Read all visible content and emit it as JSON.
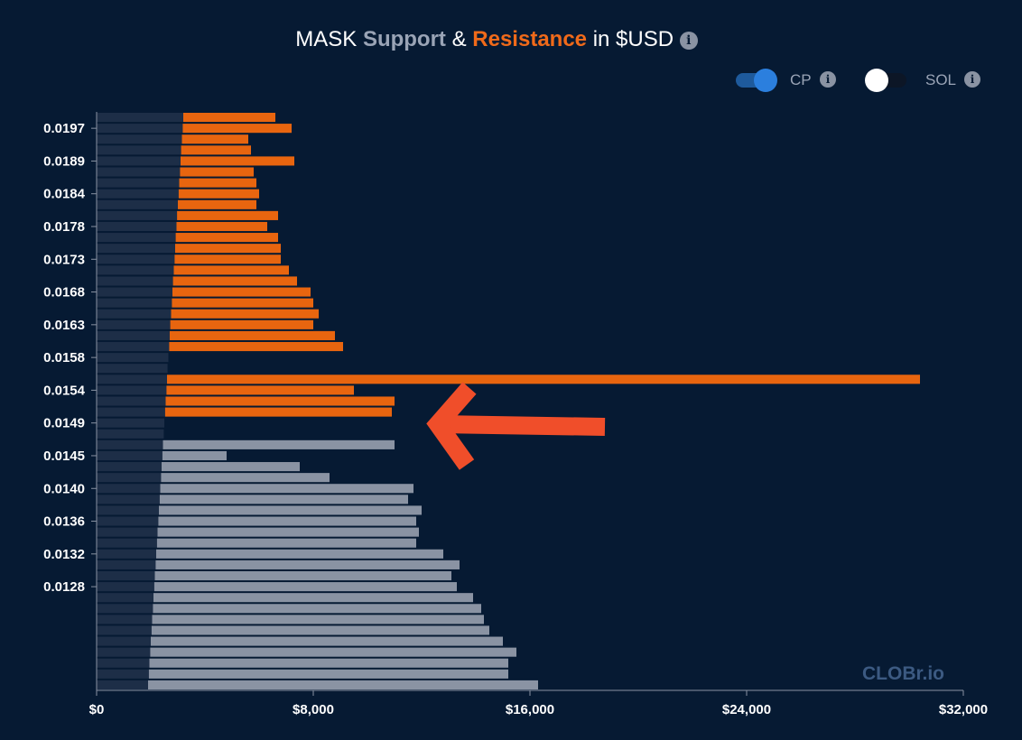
{
  "title": {
    "prefix": "MASK",
    "support": "Support",
    "amp": "&",
    "resistance": "Resistance",
    "suffix": "in $USD"
  },
  "controls": {
    "cp_label": "CP",
    "sol_label": "SOL"
  },
  "watermark": "CLOBr.io",
  "colors": {
    "background": "#061a33",
    "support": "#8a93a3",
    "resistance": "#e8650f",
    "base": "#1d2e47",
    "arrow": "#f04e2a",
    "toggle_on": "#2b7fde"
  },
  "chart_data": {
    "type": "bar",
    "orientation": "horizontal",
    "title": "MASK Support & Resistance in $USD",
    "xlim": [
      0,
      32000
    ],
    "x_ticks": [
      "$0",
      "$8,000",
      "$16,000",
      "$24,000",
      "$32,000"
    ],
    "y_ticks": [
      "0.0197",
      "0.0189",
      "0.0184",
      "0.0178",
      "0.0173",
      "0.0168",
      "0.0163",
      "0.0158",
      "0.0154",
      "0.0149",
      "0.0145",
      "0.0140",
      "0.0136",
      "0.0132",
      "0.0128"
    ],
    "series": [
      {
        "name": "Support",
        "values": [
          3200,
          3180,
          3150,
          3120,
          3100,
          3080,
          3050,
          3030,
          3000,
          2970,
          2950,
          2920,
          2900,
          2880,
          2850,
          2820,
          2800,
          2780,
          2750,
          2720,
          2700,
          2680,
          2650,
          2620,
          2600,
          2580,
          2550,
          2530,
          2500,
          2480,
          11000,
          4800,
          7500,
          8600,
          11700,
          11500,
          12000,
          11800,
          11900,
          11800,
          12800,
          13400,
          13100,
          13300,
          13900,
          14200,
          14300,
          14500,
          15000,
          15500,
          15200,
          15200,
          16300
        ]
      },
      {
        "name": "Resistance",
        "values": [
          6600,
          7200,
          5600,
          5700,
          7300,
          5800,
          5900,
          6000,
          5900,
          6700,
          6300,
          6700,
          6800,
          6800,
          7100,
          7400,
          7900,
          8000,
          8200,
          8000,
          8800,
          9100,
          null,
          null,
          30400,
          9500,
          11000,
          10900,
          null,
          null,
          null,
          null,
          null,
          null,
          null,
          null,
          null,
          null,
          null,
          null,
          null,
          null,
          null,
          null,
          null,
          null,
          null,
          null,
          null,
          null,
          null,
          null,
          null
        ]
      }
    ],
    "base_values": [
      3200,
      3180,
      3150,
      3120,
      3100,
      3080,
      3050,
      3030,
      3000,
      2970,
      2950,
      2920,
      2900,
      2880,
      2850,
      2820,
      2800,
      2780,
      2750,
      2720,
      2700,
      2680,
      2650,
      2620,
      2600,
      2580,
      2550,
      2530,
      2500,
      2480,
      2450,
      2430,
      2400,
      2380,
      2350,
      2330,
      2300,
      2280,
      2250,
      2230,
      2200,
      2180,
      2150,
      2130,
      2100,
      2080,
      2050,
      2030,
      2000,
      1980,
      1950,
      1930,
      1900
    ]
  }
}
